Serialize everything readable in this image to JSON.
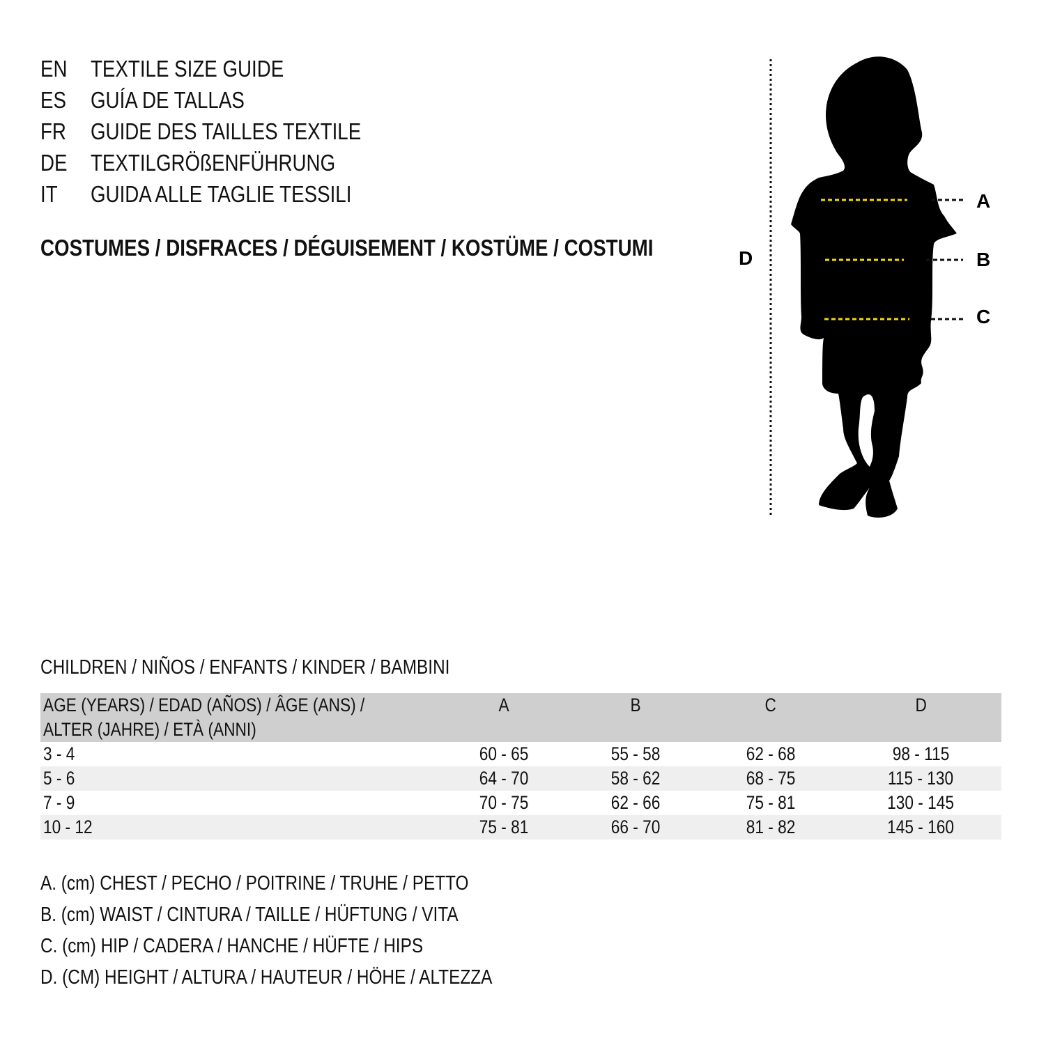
{
  "guide_titles": [
    {
      "code": "EN",
      "title": "TEXTILE SIZE GUIDE"
    },
    {
      "code": "ES",
      "title": "GUÍA DE TALLAS"
    },
    {
      "code": "FR",
      "title": "GUIDE DES TAILLES TEXTILE"
    },
    {
      "code": "DE",
      "title": "TEXTILGRÖßENFÜHRUNG"
    },
    {
      "code": "IT",
      "title": "GUIDA ALLE TAGLIE TESSILI"
    }
  ],
  "category": "COSTUMES / DISFRACES / DÉGUISEMENT / KOSTÜME / COSTUMI",
  "figure": {
    "labels": {
      "a": "A",
      "b": "B",
      "c": "C",
      "d": "D"
    },
    "guide_color": "#f5d90a"
  },
  "table": {
    "section_title": "CHILDREN / NIÑOS / ENFANTS / KINDER / BAMBINI",
    "header": {
      "age_line1": "AGE (YEARS) / EDAD (AÑOS) / ÂGE (ANS) /",
      "age_line2": "ALTER (JAHRE) / ETÀ (ANNI)",
      "a": "A",
      "b": "B",
      "c": "C",
      "d": "D"
    },
    "rows": [
      {
        "age": "3 - 4",
        "a": "60 - 65",
        "b": "55 - 58",
        "c": "62 - 68",
        "d": "98 - 115"
      },
      {
        "age": "5 - 6",
        "a": "64 - 70",
        "b": "58 - 62",
        "c": "68 - 75",
        "d": "115 - 130"
      },
      {
        "age": "7 - 9",
        "a": "70 - 75",
        "b": "62 - 66",
        "c": "75 - 81",
        "d": "130 - 145"
      },
      {
        "age": "10 - 12",
        "a": "75 - 81",
        "b": "66 - 70",
        "c": "81 - 82",
        "d": "145 - 160"
      }
    ]
  },
  "legend": [
    "A. (cm) CHEST / PECHO / POITRINE / TRUHE / PETTO",
    "B. (cm) WAIST / CINTURA / TAILLE / HÜFTUNG / VITA",
    "C. (cm) HIP / CADERA / HANCHE / HÜFTE / HIPS",
    "D. (CM) HEIGHT / ALTURA / HAUTEUR / HÖHE / ALTEZZA"
  ]
}
